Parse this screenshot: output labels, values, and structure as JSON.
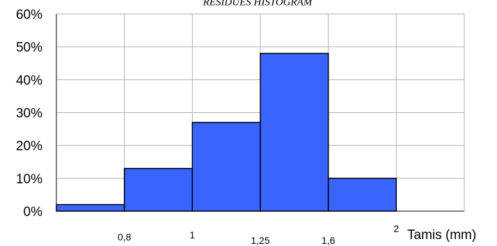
{
  "chart_data": {
    "type": "bar",
    "title": "RESIDUES HISTOGRAM",
    "xlabel": "Tamis (mm)",
    "ylabel": "",
    "categories": [
      "",
      "0,8",
      "1",
      "1,25",
      "1,6",
      "2"
    ],
    "values": [
      0.02,
      0.13,
      0.27,
      0.48,
      0.1,
      0
    ],
    "y_ticks": [
      "0%",
      "10%",
      "20%",
      "30%",
      "40%",
      "50%",
      "60%"
    ],
    "ylim": [
      0,
      0.6
    ],
    "grid": true,
    "legend": "none",
    "colors": {
      "bar": "#3A64FF",
      "grid": "#B0B0B0",
      "axis": "#000000",
      "bar_stroke": "#000000"
    }
  }
}
